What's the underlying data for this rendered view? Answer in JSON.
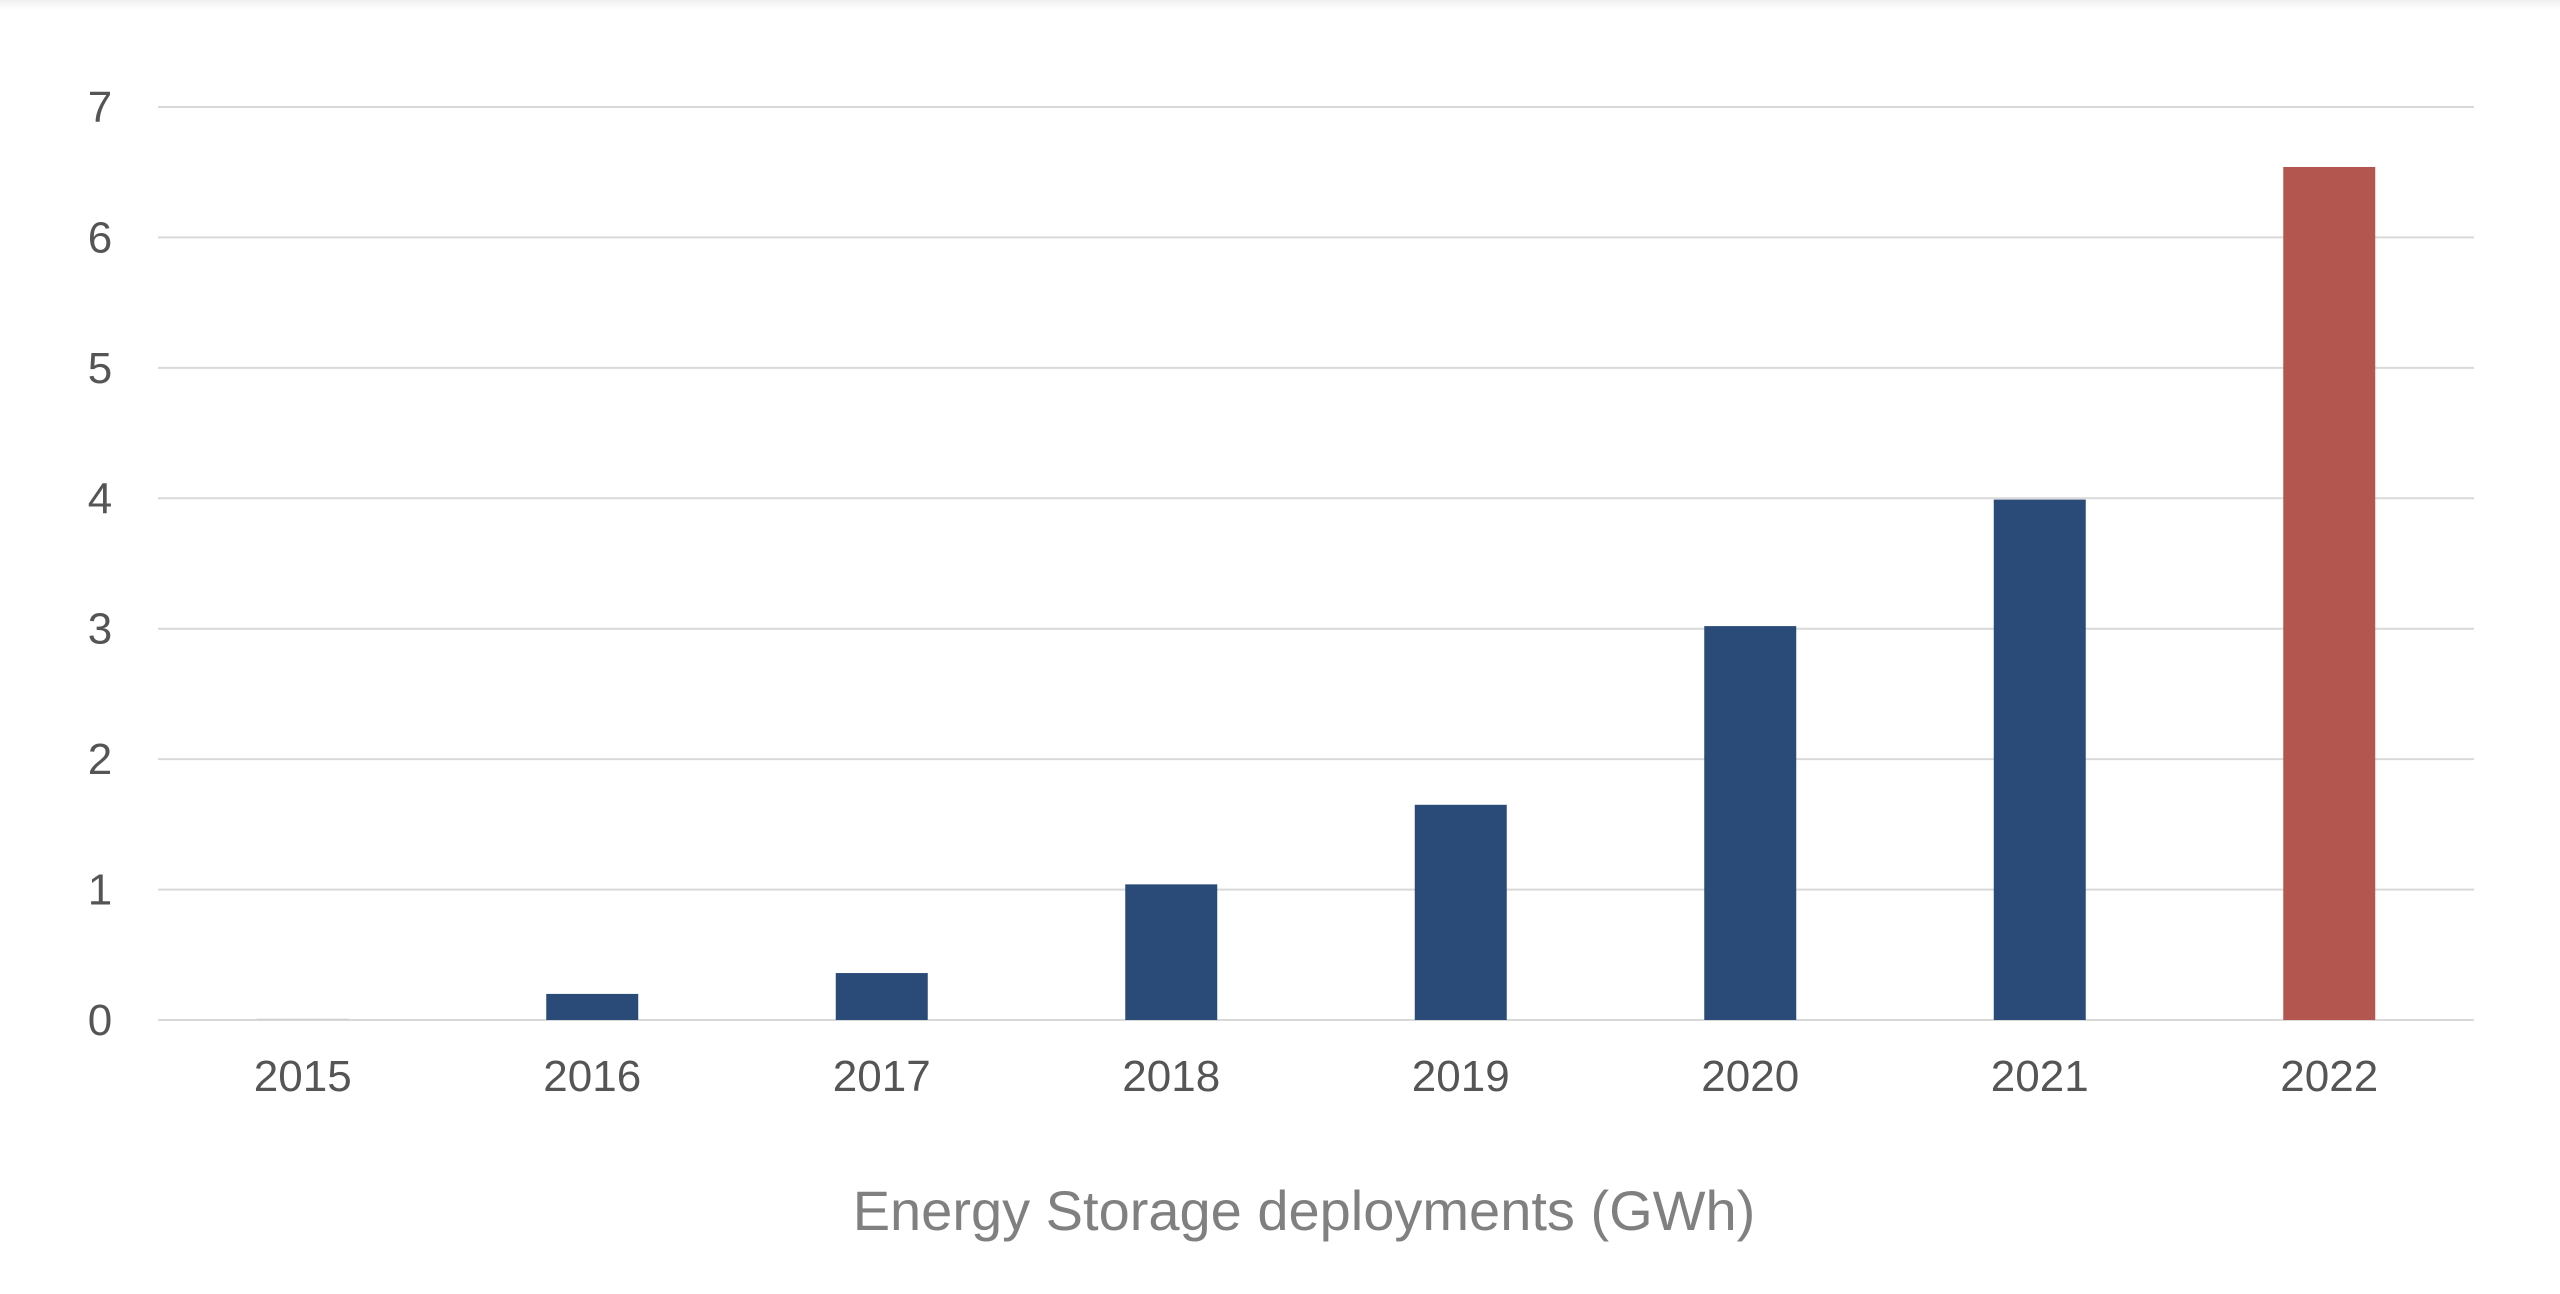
{
  "chart_data": {
    "type": "bar",
    "title": "",
    "xlabel": "Energy Storage deployments (GWh)",
    "ylabel": "",
    "categories": [
      "2015",
      "2016",
      "2017",
      "2018",
      "2019",
      "2020",
      "2021",
      "2022"
    ],
    "values": [
      0.01,
      0.2,
      0.36,
      1.04,
      1.65,
      3.02,
      3.99,
      6.54
    ],
    "yticks": [
      0,
      1,
      2,
      3,
      4,
      5,
      6,
      7
    ],
    "ylim": [
      0,
      7
    ],
    "grid": true,
    "colors": {
      "default_bar": "#2a4a78",
      "highlight_bar": "#b35650",
      "gridline": "#d9d9d9",
      "tick_text": "#555555",
      "axis_title": "#808080"
    },
    "highlight_category": "2022"
  }
}
